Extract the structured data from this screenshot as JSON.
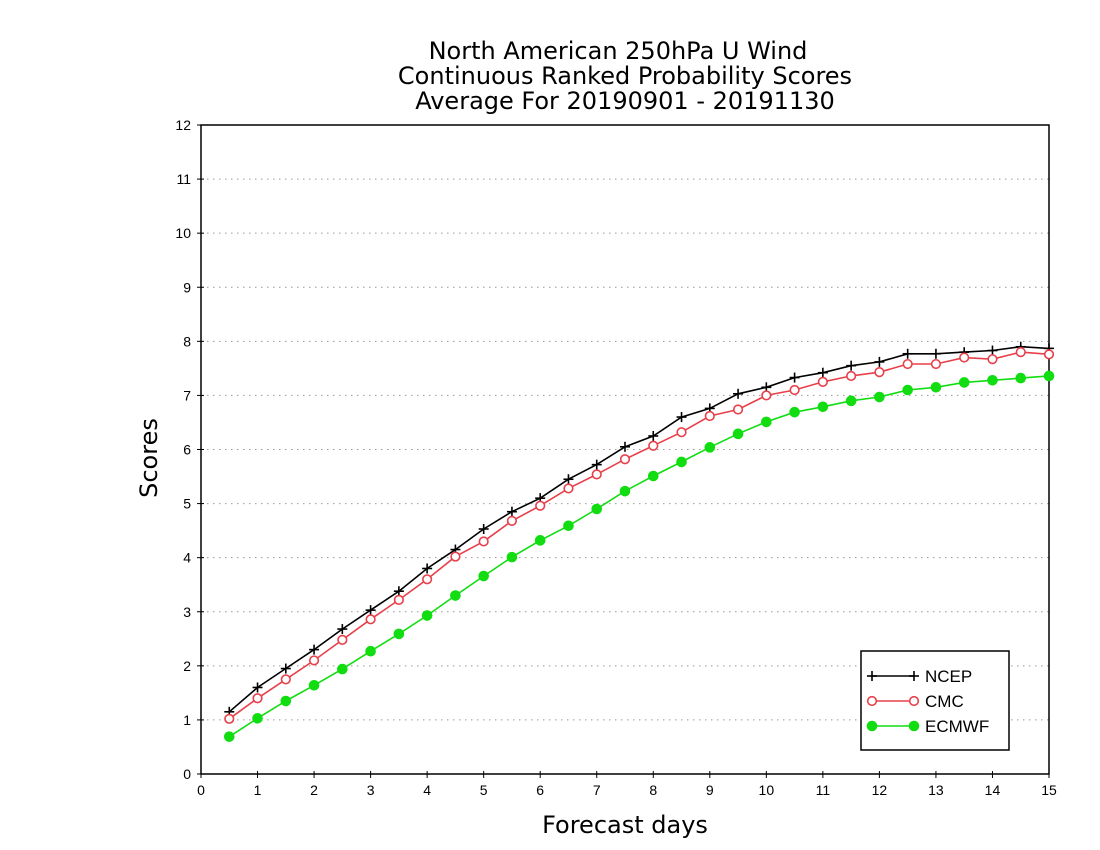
{
  "chart_data": {
    "type": "line",
    "title_lines": [
      "North American 250hPa U Wind",
      "Continuous Ranked Probability Scores",
      "Average For 20190901 - 20191130"
    ],
    "xlabel": "Forecast days",
    "ylabel": "Scores",
    "xlim": [
      0,
      15
    ],
    "ylim": [
      0,
      12
    ],
    "xticks": [
      "0",
      "1",
      "2",
      "3",
      "4",
      "5",
      "6",
      "7",
      "8",
      "9",
      "10",
      "11",
      "12",
      "13",
      "14",
      "15"
    ],
    "yticks": [
      "0",
      "1",
      "2",
      "3",
      "4",
      "5",
      "6",
      "7",
      "8",
      "9",
      "10",
      "11",
      "12"
    ],
    "grid": "horizontal dotted",
    "legend_position": "bottom-right",
    "x": [
      0.5,
      1,
      1.5,
      2,
      2.5,
      3,
      3.5,
      4,
      4.5,
      5,
      5.5,
      6,
      6.5,
      7,
      7.5,
      8,
      8.5,
      9,
      9.5,
      10,
      10.5,
      11,
      11.5,
      12,
      12.5,
      13,
      13.5,
      14,
      14.5,
      15
    ],
    "series": [
      {
        "name": "NCEP",
        "color": "#000000",
        "marker": "plus",
        "values": [
          1.15,
          1.6,
          1.95,
          2.3,
          2.68,
          3.03,
          3.38,
          3.8,
          4.15,
          4.53,
          4.85,
          5.1,
          5.45,
          5.72,
          6.05,
          6.25,
          6.6,
          6.76,
          7.03,
          7.15,
          7.33,
          7.42,
          7.55,
          7.62,
          7.77,
          7.77,
          7.8,
          7.83,
          7.9,
          7.87
        ]
      },
      {
        "name": "CMC",
        "color": "#e8404a",
        "marker": "open-circle",
        "values": [
          1.02,
          1.4,
          1.75,
          2.1,
          2.48,
          2.86,
          3.22,
          3.6,
          4.02,
          4.3,
          4.68,
          4.96,
          5.28,
          5.54,
          5.82,
          6.07,
          6.32,
          6.62,
          6.74,
          7.0,
          7.1,
          7.25,
          7.36,
          7.43,
          7.58,
          7.58,
          7.7,
          7.67,
          7.8,
          7.76
        ]
      },
      {
        "name": "ECMWF",
        "color": "#11dd11",
        "marker": "filled-circle",
        "values": [
          0.69,
          1.03,
          1.35,
          1.64,
          1.94,
          2.27,
          2.59,
          2.93,
          3.3,
          3.66,
          4.01,
          4.32,
          4.59,
          4.9,
          5.23,
          5.51,
          5.77,
          6.04,
          6.29,
          6.51,
          6.69,
          6.79,
          6.9,
          6.97,
          7.1,
          7.15,
          7.24,
          7.28,
          7.32,
          7.36
        ]
      }
    ]
  }
}
